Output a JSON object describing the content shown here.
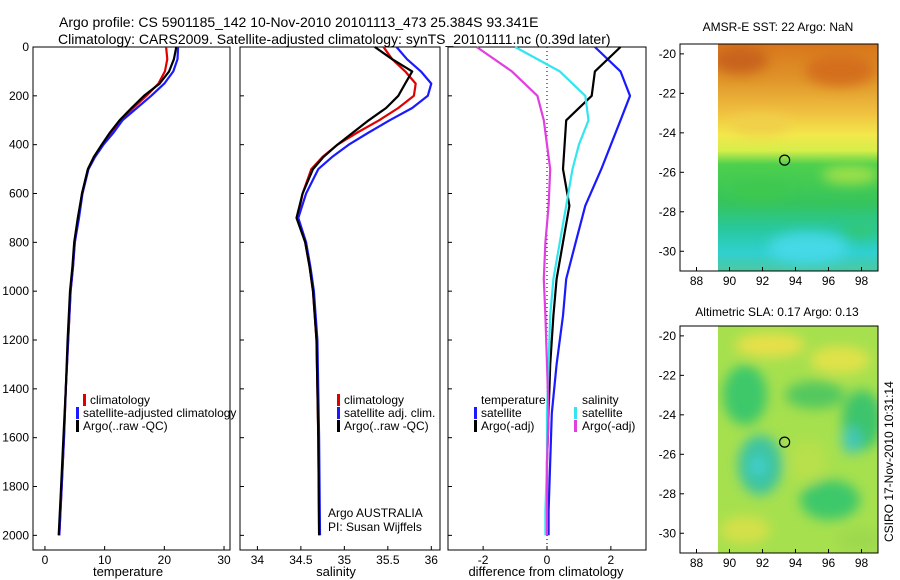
{
  "header": {
    "line1": "Argo profile: CS 5901185_142 10-Nov-2010 20101113_473 25.384S 93.341E",
    "line2": "Climatology: CARS2009. Satellite-adjusted climatology: synTS_20101111.nc (0.39d later)"
  },
  "side_label": "CSIRO 17-Nov-2010 10:31:14",
  "colors": {
    "climatology": "#e00000",
    "satellite": "#1a1aff",
    "argo": "#000000",
    "sat_salinity": "#33e6ee",
    "argo_adj_salinity": "#e040e0"
  },
  "chart_data": [
    {
      "type": "line",
      "xlabel": "temperature",
      "xlim": [
        -2,
        31
      ],
      "xticks": [
        0,
        10,
        20,
        30
      ],
      "ylim": [
        2060,
        0
      ],
      "yticks": [
        0,
        200,
        400,
        600,
        800,
        1000,
        1200,
        1400,
        1600,
        1800,
        2000
      ],
      "legend": [
        "climatology",
        "satellite-adjusted climatology",
        "Argo(..raw -QC)"
      ],
      "legend_placement": "lower-right",
      "series": [
        {
          "name": "climatology",
          "color": "#e00000",
          "x": [
            20.3,
            20.5,
            20.1,
            19.0,
            17.0,
            14.8,
            12.6,
            11.2,
            9.6,
            8.2,
            7.2,
            6.2,
            5.6,
            5.0,
            4.7,
            4.3,
            3.9,
            3.5,
            3.2,
            2.8,
            2.4
          ],
          "y": [
            0,
            50,
            100,
            150,
            200,
            250,
            300,
            350,
            400,
            450,
            500,
            600,
            700,
            800,
            900,
            1000,
            1200,
            1400,
            1600,
            1800,
            2000
          ]
        },
        {
          "name": "satellite-adjusted climatology",
          "color": "#1a1aff",
          "x": [
            22.3,
            22.2,
            21.5,
            20.0,
            17.8,
            15.4,
            13.0,
            11.5,
            9.8,
            8.4,
            7.3,
            6.3,
            5.7,
            5.0,
            4.7,
            4.3,
            3.9,
            3.5,
            3.2,
            2.8,
            2.4
          ],
          "y": [
            0,
            50,
            100,
            150,
            200,
            250,
            300,
            350,
            400,
            450,
            500,
            600,
            700,
            800,
            900,
            1000,
            1200,
            1400,
            1600,
            1800,
            2000
          ]
        },
        {
          "name": "Argo(..raw -QC)",
          "color": "#000000",
          "x": [
            22.0,
            21.6,
            20.8,
            19.2,
            16.6,
            14.5,
            12.5,
            10.9,
            9.5,
            8.2,
            7.2,
            6.2,
            5.5,
            4.9,
            4.6,
            4.2,
            3.8,
            3.5,
            3.1,
            2.7,
            2.3
          ],
          "y": [
            0,
            50,
            100,
            150,
            200,
            250,
            300,
            350,
            400,
            450,
            500,
            600,
            700,
            800,
            900,
            1000,
            1200,
            1400,
            1600,
            1800,
            2000
          ]
        }
      ]
    },
    {
      "type": "line",
      "xlabel": "salinity",
      "xlim": [
        33.8,
        36.1
      ],
      "xticks": [
        34,
        34.5,
        35,
        35.5,
        36
      ],
      "ylim": [
        2060,
        0
      ],
      "legend": [
        "climatology",
        "satellite adj. clim.",
        "Argo(..raw -QC)"
      ],
      "legend_placement": "lower-right",
      "annotation": [
        "Argo AUSTRALIA",
        "PI: Susan Wijffels"
      ],
      "series": [
        {
          "name": "climatology",
          "color": "#e00000",
          "x": [
            35.45,
            35.55,
            35.7,
            35.82,
            35.8,
            35.62,
            35.4,
            35.15,
            34.92,
            34.75,
            34.62,
            34.52,
            34.46,
            34.55,
            34.6,
            34.64,
            34.68,
            34.7,
            34.71
          ],
          "y": [
            0,
            50,
            100,
            150,
            200,
            250,
            300,
            350,
            400,
            450,
            500,
            600,
            700,
            800,
            900,
            1000,
            1200,
            1600,
            2000
          ]
        },
        {
          "name": "satellite adj. clim.",
          "color": "#1a1aff",
          "x": [
            35.6,
            35.72,
            35.88,
            36.0,
            35.96,
            35.78,
            35.52,
            35.28,
            35.05,
            34.86,
            34.7,
            34.56,
            34.47,
            34.56,
            34.61,
            34.65,
            34.69,
            34.71,
            34.72
          ],
          "y": [
            0,
            50,
            100,
            150,
            200,
            250,
            300,
            350,
            400,
            450,
            500,
            600,
            700,
            800,
            900,
            1000,
            1200,
            1600,
            2000
          ]
        },
        {
          "name": "Argo(..raw -QC)",
          "color": "#000000",
          "x": [
            35.35,
            35.55,
            35.78,
            35.7,
            35.62,
            35.48,
            35.28,
            35.1,
            34.92,
            34.76,
            34.64,
            34.52,
            34.45,
            34.55,
            34.6,
            34.64,
            34.68,
            34.7,
            34.71
          ],
          "y": [
            0,
            50,
            100,
            150,
            200,
            250,
            300,
            350,
            400,
            450,
            500,
            600,
            700,
            800,
            900,
            1000,
            1200,
            1600,
            2000
          ]
        }
      ]
    },
    {
      "type": "line",
      "xlabel": "difference from climatology",
      "xlim": [
        -3.1,
        3.1
      ],
      "xticks": [
        -2,
        0,
        2
      ],
      "ylim": [
        2060,
        0
      ],
      "legend_groups": [
        {
          "title": "temperature",
          "items": [
            "satellite",
            "Argo(-adj)"
          ]
        },
        {
          "title": "salinity",
          "items": [
            "satellite",
            "Argo(-adj)"
          ]
        }
      ],
      "series": [
        {
          "name": "satellite (temperature)",
          "color": "#1a1aff",
          "x": [
            1.5,
            2.3,
            2.6,
            2.3,
            2.0,
            1.7,
            1.2,
            0.9,
            0.6,
            0.5,
            0.3,
            0.15,
            0.1,
            0.05,
            0.05
          ],
          "y": [
            0,
            100,
            200,
            300,
            400,
            500,
            650,
            800,
            950,
            1100,
            1300,
            1500,
            1700,
            1900,
            2000
          ]
        },
        {
          "name": "Argo(-adj) (temperature)",
          "color": "#000000",
          "x": [
            2.3,
            1.5,
            1.4,
            0.6,
            0.55,
            0.5,
            0.7,
            0.5,
            0.3,
            0.2,
            0.1,
            0.05,
            0.0,
            0.0,
            0.0
          ],
          "y": [
            0,
            100,
            200,
            300,
            400,
            500,
            650,
            800,
            950,
            1100,
            1300,
            1500,
            1700,
            1900,
            2000
          ]
        },
        {
          "name": "satellite (salinity)",
          "color": "#33e6ee",
          "x": [
            -1.0,
            0.4,
            1.2,
            1.3,
            1.0,
            0.8,
            0.6,
            0.4,
            0.2,
            0.1,
            0.05,
            0.0,
            0.0,
            -0.05,
            -0.05
          ],
          "y": [
            0,
            100,
            200,
            300,
            400,
            500,
            650,
            800,
            950,
            1100,
            1300,
            1500,
            1700,
            1900,
            2000
          ]
        },
        {
          "name": "Argo(-adj) (salinity)",
          "color": "#e040e0",
          "x": [
            -2.2,
            -1.1,
            -0.3,
            -0.1,
            0.0,
            0.1,
            0.05,
            -0.05,
            -0.1,
            -0.05,
            0.0,
            0.05,
            0.0,
            0.0,
            0.0
          ],
          "y": [
            0,
            100,
            200,
            300,
            400,
            500,
            650,
            800,
            950,
            1100,
            1300,
            1500,
            1700,
            1900,
            2000
          ]
        }
      ]
    },
    {
      "type": "heatmap",
      "title": "AMSR-E SST: 22 Argo: NaN",
      "xlim": [
        87,
        99
      ],
      "xticks": [
        88,
        90,
        92,
        94,
        96,
        98
      ],
      "ylim": [
        -31,
        -19.5
      ],
      "yticks": [
        -20,
        -22,
        -24,
        -26,
        -28,
        -30
      ],
      "marker": {
        "lon": 93.341,
        "lat": -25.384
      }
    },
    {
      "type": "heatmap",
      "title": "Altimetric SLA: 0.17 Argo: 0.13",
      "xlim": [
        87,
        99
      ],
      "xticks": [
        88,
        90,
        92,
        94,
        96,
        98
      ],
      "ylim": [
        -31,
        -19.5
      ],
      "yticks": [
        -20,
        -22,
        -24,
        -26,
        -28,
        -30
      ],
      "marker": {
        "lon": 93.341,
        "lat": -25.384
      }
    }
  ]
}
